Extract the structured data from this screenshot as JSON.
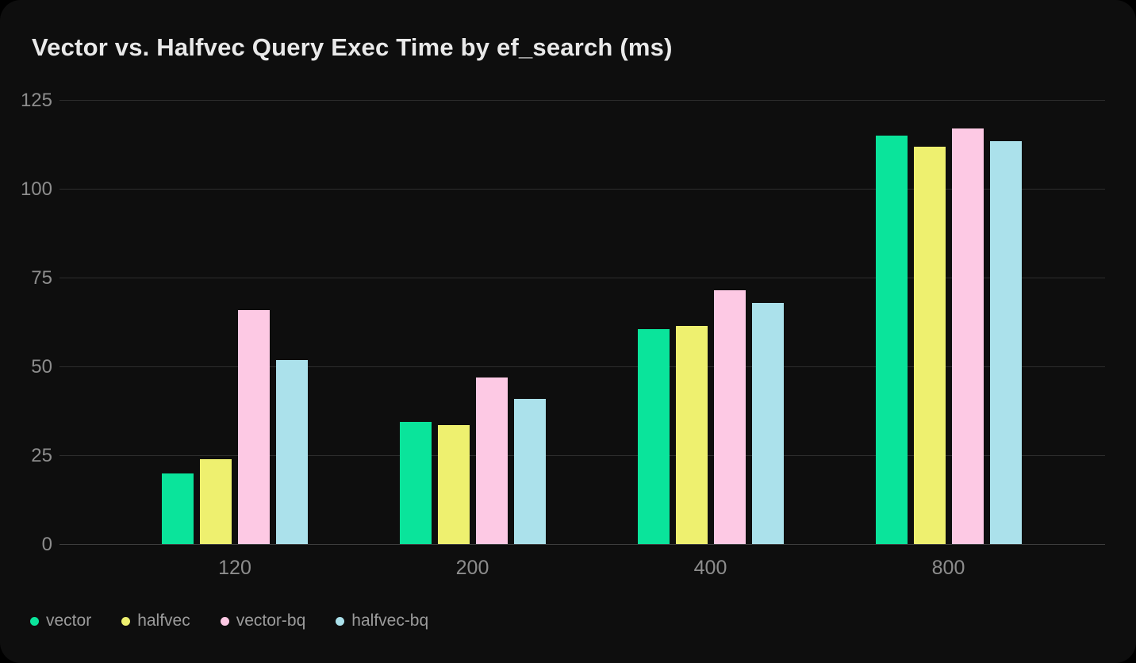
{
  "card": {
    "background": "#0e0e0e"
  },
  "chart_data": {
    "type": "bar",
    "title": "Vector vs. Halfvec Query Exec Time by ef_search (ms)",
    "categories": [
      "120",
      "200",
      "400",
      "800"
    ],
    "series": [
      {
        "name": "vector",
        "color": "#0ae49b",
        "values": [
          20,
          34.5,
          60.5,
          115
        ]
      },
      {
        "name": "halfvec",
        "color": "#eef06f",
        "values": [
          24,
          33.5,
          61.5,
          112
        ]
      },
      {
        "name": "vector-bq",
        "color": "#fdc9e4",
        "values": [
          66,
          47,
          71.5,
          117
        ]
      },
      {
        "name": "halfvec-bq",
        "color": "#abe1eb",
        "values": [
          52,
          41,
          68,
          113.5
        ]
      }
    ],
    "xlabel": "",
    "ylabel": "",
    "ylim": [
      0,
      125
    ],
    "yticks": [
      0,
      25,
      50,
      75,
      100,
      125
    ],
    "grid": true,
    "legend_position": "bottom-left"
  },
  "style": {
    "gridline_color": "#2d2d2d",
    "zero_line_color": "#3e3e3e",
    "tick_label_color": "#8d8d8d",
    "legend_label_color": "#9b9b9b",
    "title_color": "#e9e9e9"
  }
}
